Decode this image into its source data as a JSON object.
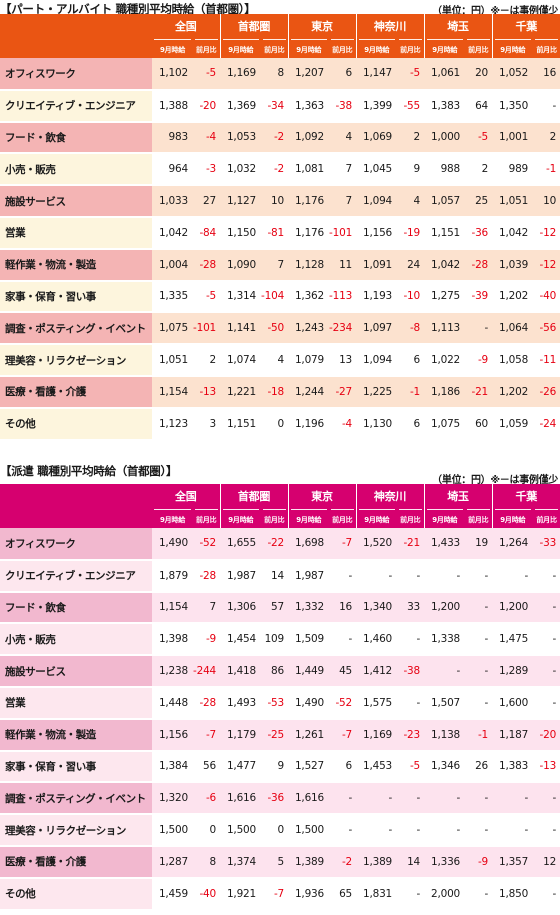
{
  "regions": [
    "全国",
    "首都圏",
    "東京",
    "神奈川",
    "埼玉",
    "千葉"
  ],
  "col_labels": {
    "sept": "9月時給",
    "ratio": "前月比"
  },
  "categories": [
    "オフィスワーク",
    "クリエイティブ・エンジニア",
    "フード・飲食",
    "小売・販売",
    "施設サービス",
    "営業",
    "軽作業・物流・製造",
    "家事・保育・習い事",
    "調査・ポスティング・イベント",
    "理美容・リラクゼーション",
    "医療・看護・介護",
    "その他"
  ],
  "section1": {
    "title": "【パート・アルバイト 職種別平均時給（首都圏）】",
    "unit_note": "（単位：円）※－は事例僅少",
    "rows": [
      [
        "1,102",
        "-5",
        "1,169",
        "8",
        "1,207",
        "6",
        "1,147",
        "-5",
        "1,061",
        "20",
        "1,052",
        "16"
      ],
      [
        "1,388",
        "-20",
        "1,369",
        "-34",
        "1,363",
        "-38",
        "1,399",
        "-55",
        "1,383",
        "64",
        "1,350",
        "-"
      ],
      [
        "983",
        "-4",
        "1,053",
        "-2",
        "1,092",
        "4",
        "1,069",
        "2",
        "1,000",
        "-5",
        "1,001",
        "2"
      ],
      [
        "964",
        "-3",
        "1,032",
        "-2",
        "1,081",
        "7",
        "1,045",
        "9",
        "988",
        "2",
        "989",
        "-1"
      ],
      [
        "1,033",
        "27",
        "1,127",
        "10",
        "1,176",
        "7",
        "1,094",
        "4",
        "1,057",
        "25",
        "1,051",
        "10"
      ],
      [
        "1,042",
        "-84",
        "1,150",
        "-81",
        "1,176",
        "-101",
        "1,156",
        "-19",
        "1,151",
        "-36",
        "1,042",
        "-12"
      ],
      [
        "1,004",
        "-28",
        "1,090",
        "7",
        "1,128",
        "11",
        "1,091",
        "24",
        "1,042",
        "-28",
        "1,039",
        "-12"
      ],
      [
        "1,335",
        "-5",
        "1,314",
        "-104",
        "1,362",
        "-113",
        "1,193",
        "-10",
        "1,275",
        "-39",
        "1,202",
        "-40"
      ],
      [
        "1,075",
        "-101",
        "1,141",
        "-50",
        "1,243",
        "-234",
        "1,097",
        "-8",
        "1,113",
        "-",
        "1,064",
        "-56"
      ],
      [
        "1,051",
        "2",
        "1,074",
        "4",
        "1,079",
        "13",
        "1,094",
        "6",
        "1,022",
        "-9",
        "1,058",
        "-11"
      ],
      [
        "1,154",
        "-13",
        "1,221",
        "-18",
        "1,244",
        "-27",
        "1,225",
        "-1",
        "1,186",
        "-21",
        "1,202",
        "-26"
      ],
      [
        "1,123",
        "3",
        "1,151",
        "0",
        "1,196",
        "-4",
        "1,130",
        "6",
        "1,075",
        "60",
        "1,059",
        "-24"
      ]
    ]
  },
  "section2": {
    "title": "【派遣 職種別平均時給（首都圏）】",
    "unit_note": "（単位：円）※－は事例僅少",
    "rows": [
      [
        "1,490",
        "-52",
        "1,655",
        "-22",
        "1,698",
        "-7",
        "1,520",
        "-21",
        "1,433",
        "19",
        "1,264",
        "-33"
      ],
      [
        "1,879",
        "-28",
        "1,987",
        "14",
        "1,987",
        "-",
        "-",
        "-",
        "-",
        "-",
        "-",
        "-"
      ],
      [
        "1,154",
        "7",
        "1,306",
        "57",
        "1,332",
        "16",
        "1,340",
        "33",
        "1,200",
        "-",
        "1,200",
        "-"
      ],
      [
        "1,398",
        "-9",
        "1,454",
        "109",
        "1,509",
        "-",
        "1,460",
        "-",
        "1,338",
        "-",
        "1,475",
        "-"
      ],
      [
        "1,238",
        "-244",
        "1,418",
        "86",
        "1,449",
        "45",
        "1,412",
        "-38",
        "-",
        "-",
        "1,289",
        "-"
      ],
      [
        "1,448",
        "-28",
        "1,493",
        "-53",
        "1,490",
        "-52",
        "1,575",
        "-",
        "1,507",
        "-",
        "1,600",
        "-"
      ],
      [
        "1,156",
        "-7",
        "1,179",
        "-25",
        "1,261",
        "-7",
        "1,169",
        "-23",
        "1,138",
        "-1",
        "1,187",
        "-20"
      ],
      [
        "1,384",
        "56",
        "1,477",
        "9",
        "1,527",
        "6",
        "1,453",
        "-5",
        "1,346",
        "26",
        "1,383",
        "-13"
      ],
      [
        "1,320",
        "-6",
        "1,616",
        "-36",
        "1,616",
        "-",
        "-",
        "-",
        "-",
        "-",
        "-",
        "-"
      ],
      [
        "1,500",
        "0",
        "1,500",
        "0",
        "1,500",
        "-",
        "-",
        "-",
        "-",
        "-",
        "-",
        "-"
      ],
      [
        "1,287",
        "8",
        "1,374",
        "5",
        "1,389",
        "-2",
        "1,389",
        "14",
        "1,336",
        "-9",
        "1,357",
        "12"
      ],
      [
        "1,459",
        "-40",
        "1,921",
        "-7",
        "1,936",
        "65",
        "1,831",
        "-",
        "2,000",
        "-",
        "1,850",
        "-"
      ]
    ]
  }
}
